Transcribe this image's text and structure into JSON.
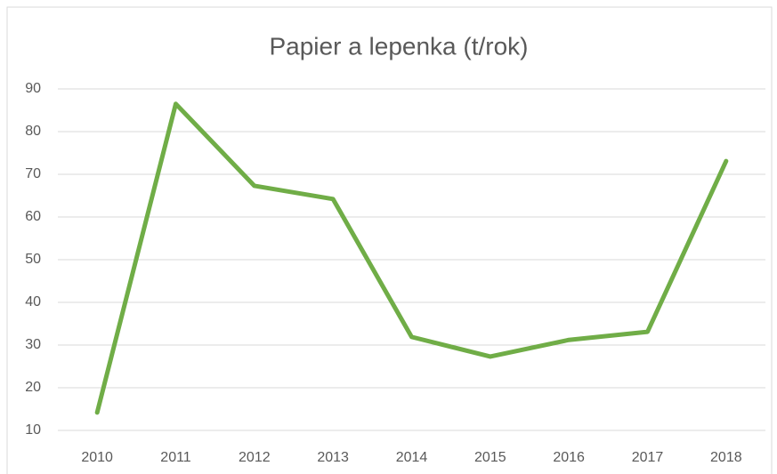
{
  "chart_data": {
    "type": "line",
    "title": "Papier a lepenka (t/rok)",
    "categories": [
      "2010",
      "2011",
      "2012",
      "2013",
      "2014",
      "2015",
      "2016",
      "2017",
      "2018"
    ],
    "series": [
      {
        "name": "Papier a lepenka",
        "color": "#70ad47",
        "values": [
          14.2,
          86.5,
          67.3,
          64.2,
          31.9,
          27.3,
          31.2,
          33.1,
          73.1
        ]
      }
    ],
    "ylim": [
      10,
      90
    ],
    "yticks": [
      10,
      20,
      30,
      40,
      50,
      60,
      70,
      80,
      90
    ],
    "grid": true
  }
}
